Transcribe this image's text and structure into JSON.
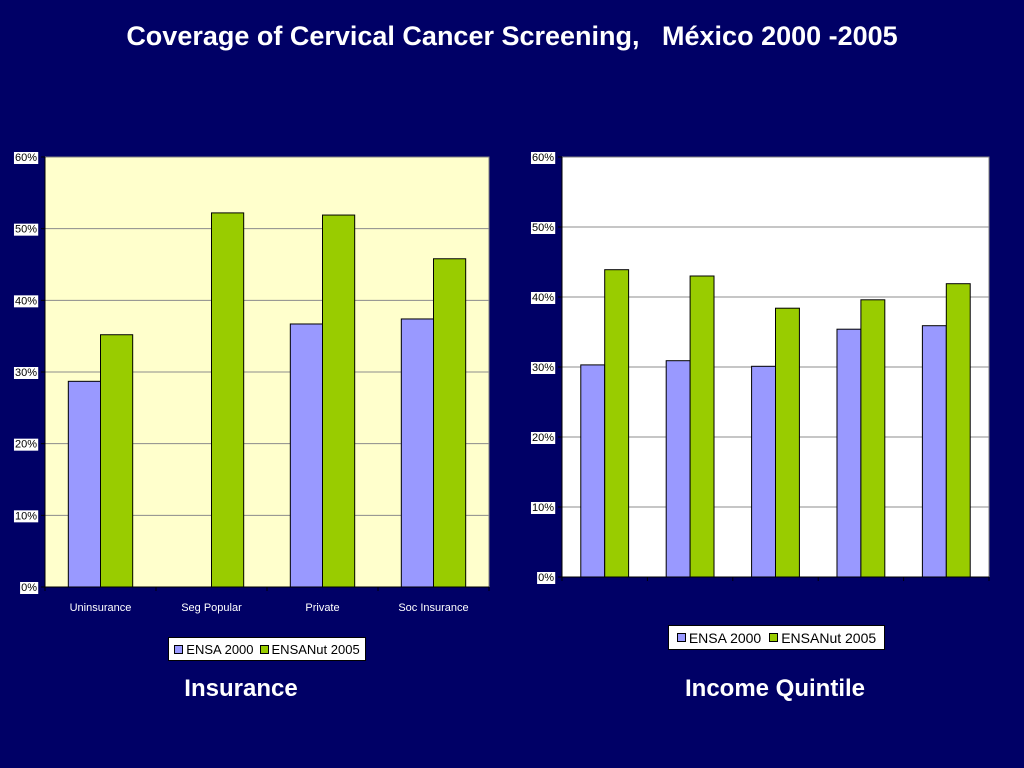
{
  "slide": {
    "title": "Coverage of Cervical Cancer Screening,   México 2000 -2005",
    "background_color": "#000066",
    "text_color": "#FFFFFF"
  },
  "chart_data": [
    {
      "type": "bar",
      "xlabel": "Insurance",
      "categories": [
        "Uninsurance",
        "Seg Popular",
        "Private",
        "Soc Insurance"
      ],
      "series": [
        {
          "name": "ENSA 2000",
          "color": "#9999FF",
          "values": [
            28.7,
            null,
            36.7,
            37.4
          ]
        },
        {
          "name": "ENSANut 2005",
          "color": "#99CC00",
          "values": [
            35.2,
            52.2,
            51.9,
            45.8
          ]
        }
      ],
      "ylim": [
        0,
        60
      ],
      "yticks": [
        "0%",
        "10%",
        "20%",
        "30%",
        "40%",
        "50%",
        "60%"
      ],
      "grid": true,
      "legend": "bottom",
      "plot_background": "#FFFFCC"
    },
    {
      "type": "bar",
      "xlabel": "Income Quintile",
      "series": [
        {
          "name": "ENSA 2000",
          "color": "#9999FF",
          "values": [
            30.3,
            30.9,
            30.1,
            35.4,
            35.9
          ]
        },
        {
          "name": "ENSANut 2005",
          "color": "#99CC00",
          "values": [
            43.9,
            43.0,
            38.4,
            39.6,
            41.9
          ]
        }
      ],
      "ylim": [
        0,
        60
      ],
      "yticks": [
        "0%",
        "10%",
        "20%",
        "30%",
        "40%",
        "50%",
        "60%"
      ],
      "grid": true,
      "legend": "bottom",
      "plot_background": "#FFFFFF"
    }
  ]
}
